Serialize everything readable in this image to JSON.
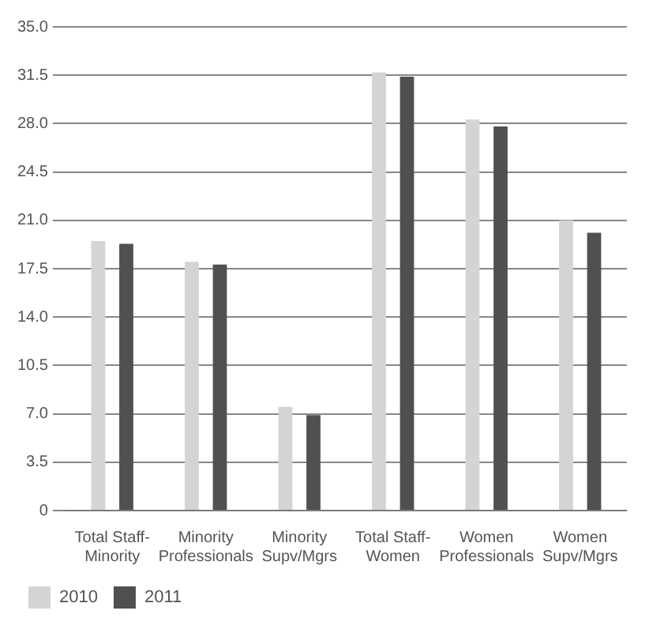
{
  "chart_data": {
    "type": "bar",
    "categories": [
      "Total Staff-Minority",
      "Minority Professionals",
      "Minority Supv/Mgrs",
      "Total Staff-Women",
      "Women Professionals",
      "Women Supv/Mgrs"
    ],
    "series": [
      {
        "name": "2010",
        "color": "#d4d4d4",
        "values": [
          19.5,
          18.0,
          7.5,
          31.7,
          28.3,
          21.0
        ]
      },
      {
        "name": "2011",
        "color": "#505050",
        "values": [
          19.3,
          17.8,
          6.9,
          31.4,
          27.8,
          20.1
        ]
      }
    ],
    "ylim": [
      0,
      35
    ],
    "yticks": [
      0,
      {
        "value": 3.5,
        "label": "3.5"
      },
      {
        "value": 7,
        "label": "7.0"
      },
      {
        "value": 10.5,
        "label": "10.5"
      },
      {
        "value": 14,
        "label": "14.0"
      },
      {
        "value": 17.5,
        "label": "17.5"
      },
      {
        "value": 21,
        "label": "21.0"
      },
      {
        "value": 24.5,
        "label": "24.5"
      },
      {
        "value": 28,
        "label": "28.0"
      },
      {
        "value": 31.5,
        "label": "31.5"
      },
      {
        "value": 35,
        "label": "35.0"
      }
    ],
    "grid": "y",
    "legend": "bottom left"
  }
}
